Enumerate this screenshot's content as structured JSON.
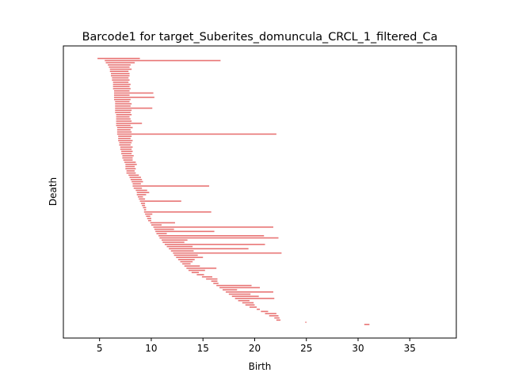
{
  "chart_data": {
    "type": "barcode",
    "title": "Barcode1 for target_Suberites_domuncula_CRCL_1_filtered_Ca",
    "xlabel": "Birth",
    "ylabel": "Death",
    "xlim": [
      1.5,
      39.5
    ],
    "xticks": [
      5,
      10,
      15,
      20,
      25,
      30,
      35
    ],
    "yticks": [],
    "bar_color": "#e87474",
    "bars": [
      [
        4.8,
        8.9
      ],
      [
        5.5,
        16.7
      ],
      [
        5.6,
        8.4
      ],
      [
        5.8,
        8.0
      ],
      [
        5.9,
        7.9
      ],
      [
        6.0,
        8.1
      ],
      [
        6.0,
        7.8
      ],
      [
        6.1,
        7.9
      ],
      [
        6.1,
        7.9
      ],
      [
        6.2,
        7.8
      ],
      [
        6.2,
        7.9
      ],
      [
        6.3,
        7.8
      ],
      [
        6.3,
        8.0
      ],
      [
        6.3,
        7.9
      ],
      [
        6.3,
        8.0
      ],
      [
        6.4,
        7.9
      ],
      [
        6.4,
        10.2
      ],
      [
        6.4,
        7.9
      ],
      [
        6.4,
        10.3
      ],
      [
        6.4,
        8.0
      ],
      [
        6.5,
        7.9
      ],
      [
        6.5,
        8.1
      ],
      [
        6.5,
        8.0
      ],
      [
        6.5,
        10.1
      ],
      [
        6.5,
        8.1
      ],
      [
        6.5,
        8.0
      ],
      [
        6.6,
        8.1
      ],
      [
        6.6,
        7.9
      ],
      [
        6.6,
        8.0
      ],
      [
        6.6,
        8.1
      ],
      [
        6.6,
        9.1
      ],
      [
        6.6,
        8.0
      ],
      [
        6.7,
        8.2
      ],
      [
        6.7,
        8.0
      ],
      [
        6.7,
        8.1
      ],
      [
        6.7,
        22.1
      ],
      [
        6.8,
        8.1
      ],
      [
        6.8,
        8.0
      ],
      [
        6.8,
        8.2
      ],
      [
        6.9,
        8.1
      ],
      [
        6.9,
        8.0
      ],
      [
        7.0,
        8.2
      ],
      [
        7.0,
        8.1
      ],
      [
        7.1,
        8.2
      ],
      [
        7.1,
        8.1
      ],
      [
        7.2,
        8.3
      ],
      [
        7.2,
        8.2
      ],
      [
        7.3,
        8.2
      ],
      [
        7.4,
        8.5
      ],
      [
        7.5,
        8.6
      ],
      [
        7.5,
        8.4
      ],
      [
        7.5,
        8.5
      ],
      [
        7.6,
        8.4
      ],
      [
        7.6,
        8.5
      ],
      [
        7.8,
        8.8
      ],
      [
        7.9,
        9.0
      ],
      [
        8.0,
        9.1
      ],
      [
        8.1,
        9.2
      ],
      [
        8.2,
        9.0
      ],
      [
        8.2,
        15.6
      ],
      [
        8.3,
        9.1
      ],
      [
        8.5,
        9.6
      ],
      [
        8.6,
        9.8
      ],
      [
        8.6,
        9.5
      ],
      [
        8.7,
        9.2
      ],
      [
        8.8,
        9.4
      ],
      [
        8.9,
        12.9
      ],
      [
        9.0,
        9.4
      ],
      [
        9.1,
        9.4
      ],
      [
        9.2,
        9.5
      ],
      [
        9.3,
        9.5
      ],
      [
        9.3,
        15.8
      ],
      [
        9.4,
        10.1
      ],
      [
        9.5,
        9.9
      ],
      [
        9.6,
        10.0
      ],
      [
        9.7,
        10.0
      ],
      [
        9.9,
        12.3
      ],
      [
        10.0,
        11.0
      ],
      [
        10.2,
        21.8
      ],
      [
        10.3,
        12.2
      ],
      [
        10.4,
        16.1
      ],
      [
        10.5,
        11.5
      ],
      [
        10.7,
        20.9
      ],
      [
        10.8,
        22.3
      ],
      [
        11.0,
        13.5
      ],
      [
        11.1,
        13.2
      ],
      [
        11.3,
        21.0
      ],
      [
        11.5,
        14.0
      ],
      [
        11.7,
        19.4
      ],
      [
        11.9,
        14.1
      ],
      [
        12.1,
        22.6
      ],
      [
        12.2,
        14.5
      ],
      [
        12.4,
        15.0
      ],
      [
        12.6,
        14.2
      ],
      [
        12.8,
        14.0
      ],
      [
        13.0,
        13.8
      ],
      [
        13.2,
        14.7
      ],
      [
        13.4,
        16.3
      ],
      [
        13.6,
        15.2
      ],
      [
        13.9,
        14.6
      ],
      [
        14.4,
        15.1
      ],
      [
        14.9,
        15.9
      ],
      [
        15.3,
        16.4
      ],
      [
        15.8,
        16.4
      ],
      [
        16.0,
        16.5
      ],
      [
        16.3,
        19.7
      ],
      [
        16.6,
        20.5
      ],
      [
        16.9,
        18.3
      ],
      [
        17.2,
        21.8
      ],
      [
        17.5,
        19.6
      ],
      [
        17.8,
        20.4
      ],
      [
        18.1,
        21.9
      ],
      [
        18.4,
        19.5
      ],
      [
        18.8,
        19.9
      ],
      [
        19.1,
        20.0
      ],
      [
        19.5,
        20.2
      ],
      [
        20.2,
        20.5
      ],
      [
        20.6,
        21.3
      ],
      [
        21.0,
        22.1
      ],
      [
        21.4,
        22.3
      ],
      [
        21.9,
        22.4
      ],
      [
        22.1,
        22.5
      ],
      [
        24.9,
        25.0
      ],
      [
        30.6,
        31.1
      ]
    ]
  }
}
